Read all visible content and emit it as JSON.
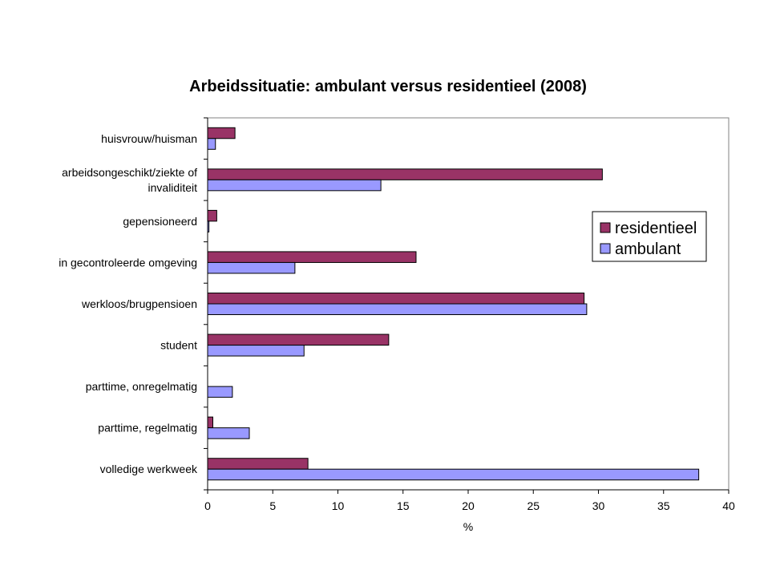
{
  "chart_data": {
    "type": "bar",
    "orientation": "horizontal",
    "title": "Arbeidssituatie: ambulant versus residentieel (2008)",
    "xlabel": "%",
    "ylabel": "",
    "xlim": [
      0,
      40
    ],
    "xticks": [
      0,
      5,
      10,
      15,
      20,
      25,
      30,
      35,
      40
    ],
    "categories": [
      [
        "huisvrouw/huisman"
      ],
      [
        "arbeidsongeschikt/ziekte of",
        "invaliditeit"
      ],
      [
        "gepensioneerd"
      ],
      [
        "in gecontroleerde omgeving"
      ],
      [
        "werkloos/brugpensioen"
      ],
      [
        "student"
      ],
      [
        "parttime, onregelmatig"
      ],
      [
        "parttime, regelmatig"
      ],
      [
        "volledige werkweek"
      ]
    ],
    "series": [
      {
        "name": "residentieel",
        "color": "#993366",
        "values": [
          2.1,
          30.3,
          0.7,
          16.0,
          28.9,
          13.9,
          0,
          0.4,
          7.7
        ]
      },
      {
        "name": "ambulant",
        "color": "#9999ff",
        "values": [
          0.6,
          13.3,
          0.1,
          6.7,
          29.1,
          7.4,
          1.9,
          3.2,
          37.7
        ]
      }
    ],
    "grid": false,
    "legend": "right"
  }
}
